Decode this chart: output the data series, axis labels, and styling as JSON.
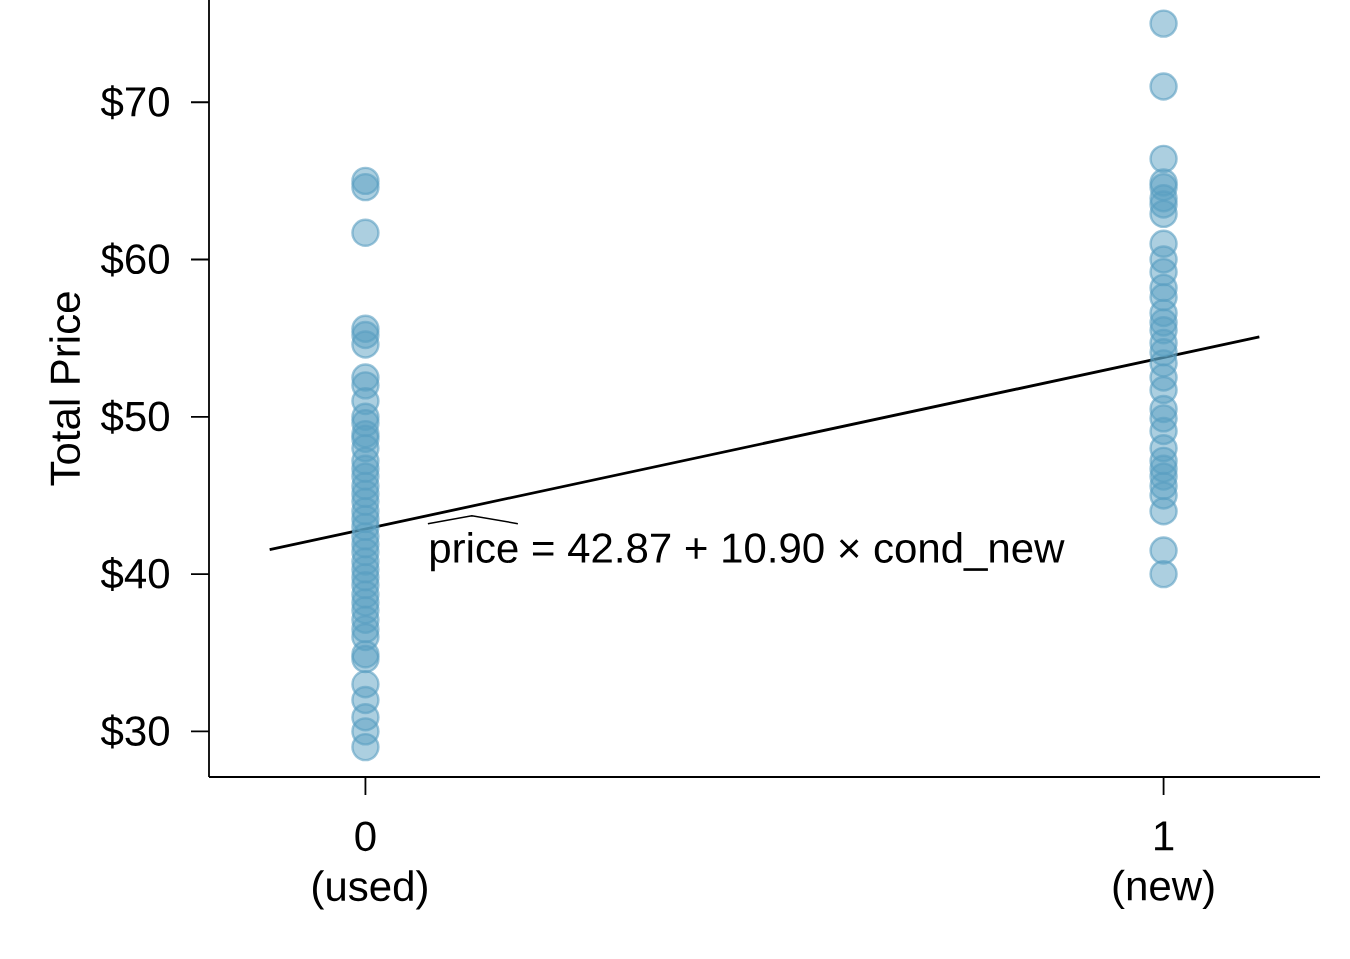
{
  "chart_data": {
    "type": "scatter",
    "ylabel": "Total Price",
    "xlim": [
      -0.196,
      1.196
    ],
    "ylim": [
      27.1,
      76.5
    ],
    "xticks": [
      {
        "value": 0,
        "label": "0 (used)"
      },
      {
        "value": 1,
        "label": "1 (new)"
      }
    ],
    "yticks": [
      {
        "value": 30,
        "label": "$30"
      },
      {
        "value": 40,
        "label": "$40"
      },
      {
        "value": 50,
        "label": "$50"
      },
      {
        "value": 60,
        "label": "$60"
      },
      {
        "value": 70,
        "label": "$70"
      }
    ],
    "grid": false,
    "annotations": [
      "price = 42.87 + 10.90 × cond_new"
    ],
    "series": [
      {
        "color": "#5a9fc2",
        "marker": "circle",
        "x": [
          0,
          0,
          0,
          0,
          0,
          0,
          0,
          0,
          0,
          0,
          0,
          0,
          0,
          0,
          0,
          0,
          0,
          0,
          0,
          0,
          0,
          0,
          0,
          0,
          0,
          0,
          0,
          0,
          0,
          0,
          0,
          0,
          0,
          0,
          0,
          0,
          0,
          0,
          0,
          0,
          0,
          0,
          0
        ],
        "values": [
          65.0,
          64.6,
          61.7,
          55.6,
          55.2,
          54.6,
          52.5,
          52.0,
          51.0,
          50.0,
          49.6,
          48.9,
          48.6,
          48.0,
          47.2,
          46.7,
          46.2,
          45.6,
          45.1,
          44.6,
          44.0,
          43.5,
          43.0,
          42.4,
          41.9,
          41.4,
          40.8,
          40.3,
          39.8,
          39.3,
          38.7,
          38.2,
          37.7,
          37.1,
          36.5,
          36.0,
          34.9,
          34.6,
          33.0,
          32.0,
          30.9,
          30.0,
          29.0
        ]
      },
      {
        "color": "#5a9fc2",
        "marker": "circle",
        "x": [
          1,
          1,
          1,
          1,
          1,
          1,
          1,
          1,
          1,
          1,
          1,
          1,
          1,
          1,
          1,
          1,
          1,
          1,
          1,
          1,
          1,
          1,
          1,
          1,
          1,
          1,
          1,
          1,
          1,
          1,
          1,
          1,
          1
        ],
        "values": [
          75.0,
          71.0,
          66.4,
          64.9,
          64.6,
          63.9,
          63.5,
          62.9,
          61.0,
          60.0,
          59.2,
          58.2,
          57.6,
          56.6,
          56.0,
          55.5,
          54.7,
          54.1,
          53.4,
          52.5,
          51.7,
          50.5,
          49.9,
          49.1,
          48.0,
          47.2,
          46.7,
          46.2,
          45.6,
          45.0,
          44.0,
          41.5,
          40.0
        ]
      },
      {
        "type": "line",
        "color": "#000000",
        "marker": "none",
        "line_style": "solid",
        "x": [
          -0.12,
          1.12
        ],
        "values": [
          41.56,
          55.08
        ]
      }
    ]
  }
}
